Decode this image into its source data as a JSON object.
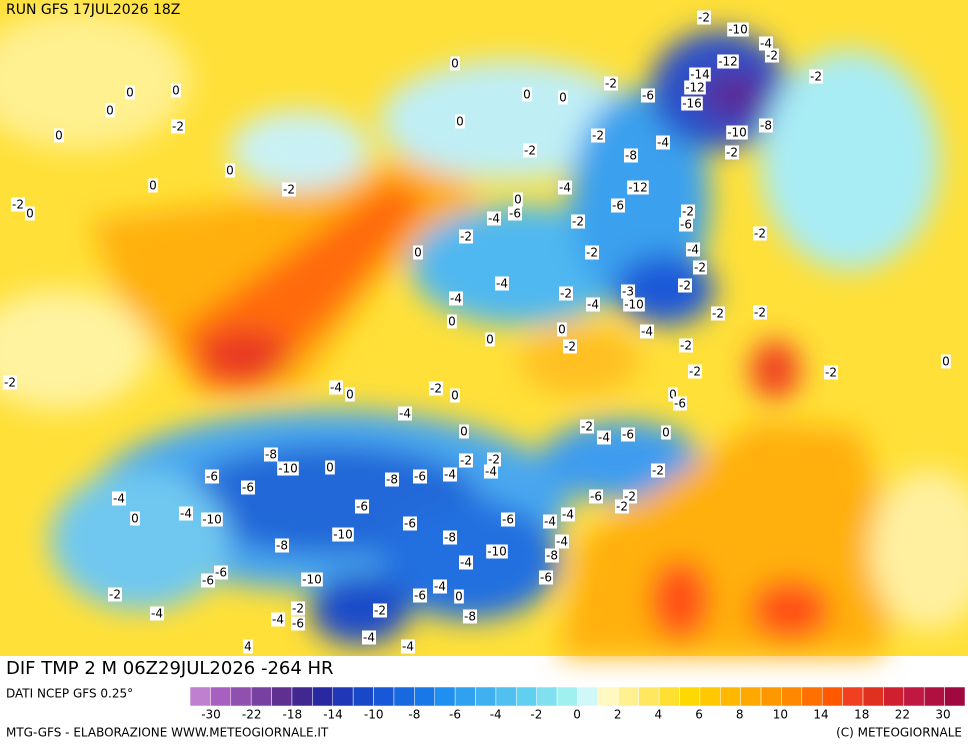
{
  "header": {
    "run": "RUN GFS 17JUL2026 18Z"
  },
  "map": {
    "title": "DIF TMP 2 M 06Z29JUL2026 -264 HR",
    "labels": [
      -2,
      -10,
      -4,
      -2,
      -12,
      -14,
      -12,
      -16,
      -2,
      -6,
      -2,
      -10,
      -8,
      -2,
      -4,
      -8,
      -2,
      -12,
      -6,
      -4,
      -2,
      0,
      0,
      0,
      0,
      0,
      0,
      0,
      -2,
      0,
      0,
      0,
      -2,
      -2,
      0,
      0,
      -6,
      -4,
      -2,
      -2,
      -2,
      -6,
      -2,
      -4,
      -2,
      0,
      -2,
      -4,
      -2,
      -4,
      -4,
      -3,
      -10,
      -2,
      -2,
      -2,
      0,
      0,
      0,
      -2,
      -4,
      -2,
      -2,
      -2,
      0,
      -2,
      -4,
      0,
      -2,
      0,
      0,
      -6,
      -4,
      0,
      -2,
      -4,
      -6,
      0,
      -8,
      -10,
      0,
      -2,
      -4,
      -2,
      -6,
      -6,
      -8,
      -6,
      -4,
      -2,
      -4,
      0,
      -4,
      -10,
      -6,
      -6,
      -2,
      -2,
      -4,
      -4,
      -6,
      -6,
      -8,
      -10,
      -8,
      -4,
      -10,
      -8,
      -4,
      -6,
      -6,
      -6,
      -10,
      -4,
      -6,
      0,
      -2,
      -4,
      -2,
      -4,
      -6,
      -2,
      -8,
      -4,
      -4,
      4
    ]
  },
  "footer": {
    "source": "DATI NCEP GFS 0.25°",
    "credit": "MTG-GFS - ELABORAZIONE WWW.METEOGIORNALE.IT",
    "copyright": "(C) METEOGIORNALE"
  },
  "colorbar": {
    "ticks": [
      -30,
      -22,
      -18,
      -14,
      -10,
      -8,
      -6,
      -4,
      -2,
      0,
      2,
      4,
      6,
      8,
      10,
      14,
      18,
      22,
      30
    ],
    "colors": [
      "#c080d0",
      "#a860c0",
      "#9050b0",
      "#7840a0",
      "#603090",
      "#402890",
      "#2828a0",
      "#2038b8",
      "#1848c8",
      "#1858d8",
      "#1868e0",
      "#1878e8",
      "#2090f0",
      "#30a0f0",
      "#40b0f0",
      "#50c0f0",
      "#60d0f0",
      "#80e0f0",
      "#a0f0f0",
      "#d0f8f8",
      "#fff8c0",
      "#fff090",
      "#ffe860",
      "#ffe030",
      "#ffd800",
      "#ffc800",
      "#ffb800",
      "#ffa800",
      "#ff9800",
      "#ff8800",
      "#ff7000",
      "#ff5800",
      "#f04020",
      "#e03020",
      "#d02030",
      "#c01840",
      "#b01040",
      "#a00840"
    ]
  }
}
